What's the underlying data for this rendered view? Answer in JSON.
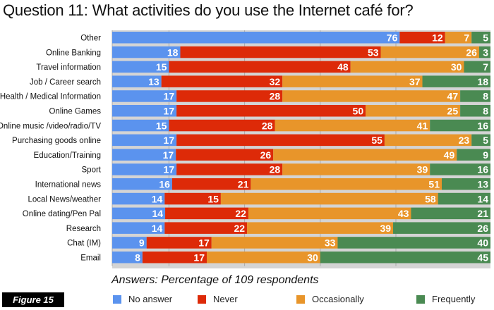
{
  "title": "Question 11: What activities do you use the Internet café for?",
  "figure_label": "Figure 15",
  "chart_data": {
    "type": "bar",
    "orientation": "horizontal",
    "stacked": true,
    "title": "Question 11: What activities do you use the Internet café for?",
    "subtitle": "Answers: Percentage of 109 respondents",
    "xlabel": "",
    "ylabel": "",
    "xlim": [
      0,
      100
    ],
    "grid": true,
    "legend_position": "bottom",
    "categories": [
      "Other",
      "Online Banking",
      "Travel information",
      "Job / Career search",
      "Health / Medical Information",
      "Online Games",
      "Online music /video/radio/TV",
      "Purchasing goods online",
      "Education/Training",
      "Sport",
      "International news",
      "Local News/weather",
      "Online dating/Pen Pal",
      "Research",
      "Chat (IM)",
      "Email"
    ],
    "series": [
      {
        "name": "No answer",
        "color": "#5b93ee",
        "values": [
          76,
          18,
          15,
          13,
          17,
          17,
          15,
          17,
          17,
          17,
          16,
          14,
          14,
          14,
          9,
          8
        ]
      },
      {
        "name": "Never",
        "color": "#dd2a08",
        "values": [
          12,
          53,
          48,
          32,
          28,
          50,
          28,
          55,
          26,
          28,
          21,
          15,
          22,
          22,
          17,
          17
        ]
      },
      {
        "name": "Occasionally",
        "color": "#e8952a",
        "values": [
          7,
          26,
          30,
          37,
          47,
          25,
          41,
          23,
          49,
          39,
          51,
          58,
          43,
          39,
          33,
          30
        ]
      },
      {
        "name": "Frequently",
        "color": "#4a8a52",
        "values": [
          5,
          3,
          7,
          18,
          8,
          8,
          16,
          5,
          9,
          16,
          13,
          14,
          21,
          26,
          40,
          45
        ]
      }
    ]
  }
}
